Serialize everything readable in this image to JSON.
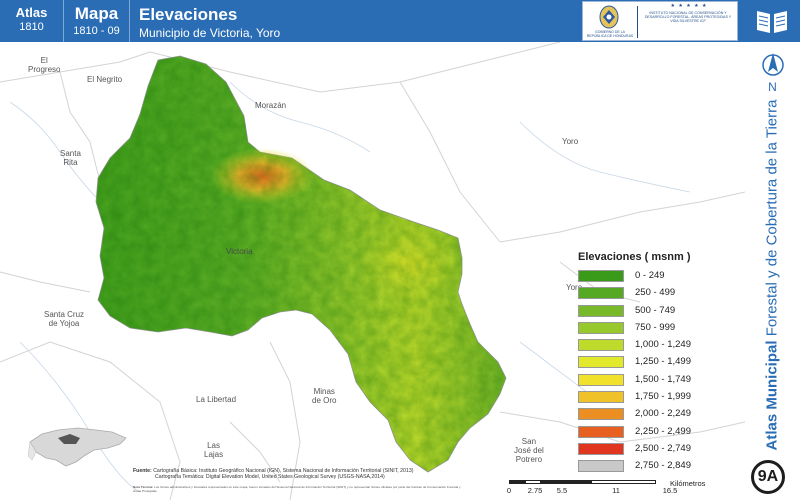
{
  "header": {
    "atlas_label": "Atlas",
    "atlas_year": "1810",
    "mapa_label": "Mapa",
    "mapa_code": "1810 - 09",
    "title": "Elevaciones",
    "subtitle": "Municipio de Victoria, Yoro"
  },
  "logos": {
    "gobierno_text": "GOBIERNO DE LA REPÚBLICA DE HONDURAS",
    "stars": "★ ★ ★ ★ ★",
    "institute_text": "INSTITUTO NACIONAL DE CONSERVACIÓN Y DESARROLLO FORESTAL, ÁREAS PROTEGIDAS Y VIDA SILVESTRE ICF"
  },
  "side": {
    "north_label": "N",
    "vertical_title_strong": "Atlas Municipal",
    "vertical_title_rest": " Forestal y de Cobertura de la Tierra",
    "badge": "9A",
    "book_icon": "open-book-icon",
    "north_icon": "north-arrow-icon"
  },
  "places": {
    "el_progreso": "El\nProgreso",
    "el_negrito": "El Negrito",
    "morazan": "Morazán",
    "yoro": "Yoro",
    "santa_rita": "Santa\nRita",
    "victoria": "Victoria",
    "yoro_east": "Yoro",
    "santa_cruz": "Santa Cruz\nde Yojoa",
    "la_libertad": "La Libertad",
    "minas_de_oro": "Minas\nde Oro",
    "las_lajas": "Las\nLajas",
    "san_jose": "San\nJosé del\nPotrero"
  },
  "legend": {
    "title": "Elevaciones ( msnm )",
    "classes": [
      {
        "label": "0 - 249",
        "color": "#3a9a1a"
      },
      {
        "label": "250 - 499",
        "color": "#55a923"
      },
      {
        "label": "500 - 749",
        "color": "#78b92a"
      },
      {
        "label": "750 - 999",
        "color": "#97c92c"
      },
      {
        "label": "1,000 - 1,249",
        "color": "#bedb2c"
      },
      {
        "label": "1,250 - 1,499",
        "color": "#e2e82a"
      },
      {
        "label": "1,500 - 1,749",
        "color": "#f1e12a"
      },
      {
        "label": "1,750 - 1,999",
        "color": "#f0c22a"
      },
      {
        "label": "2,000 - 2,249",
        "color": "#ec8f22"
      },
      {
        "label": "2,250 - 2,499",
        "color": "#e86020"
      },
      {
        "label": "2,500 - 2,749",
        "color": "#e0351e"
      },
      {
        "label": "2,750 - 2,849",
        "color": "#c9c9c9"
      }
    ]
  },
  "sources": {
    "label": "Fuente:",
    "line1": "Cartografía Básica: Instituto Geográfico Nacional (IGN), Sistema Nacional de Información Territorial (SINIT, 2013)",
    "line2": "Cartografía Temática: Digital Elevation Model, United States Geological Survey (USGS-NASA,2014)",
    "notes_label": "Nota Técnica:",
    "notes": "Los límites administrativos y forestales representados en este mapa, fueron tomados del Sistema Nacional de Información Territorial (SINIT) y no representan límites oficiales por parte del Instituto de Conservación Forestal y Áreas Protegidas."
  },
  "scale": {
    "ticks": [
      "0",
      "2.75",
      "5.5",
      "11",
      "16.5"
    ],
    "unit": "Kilómetros"
  },
  "colors": {
    "header_blue": "#2a6db5",
    "accent": "#2a6db5"
  }
}
